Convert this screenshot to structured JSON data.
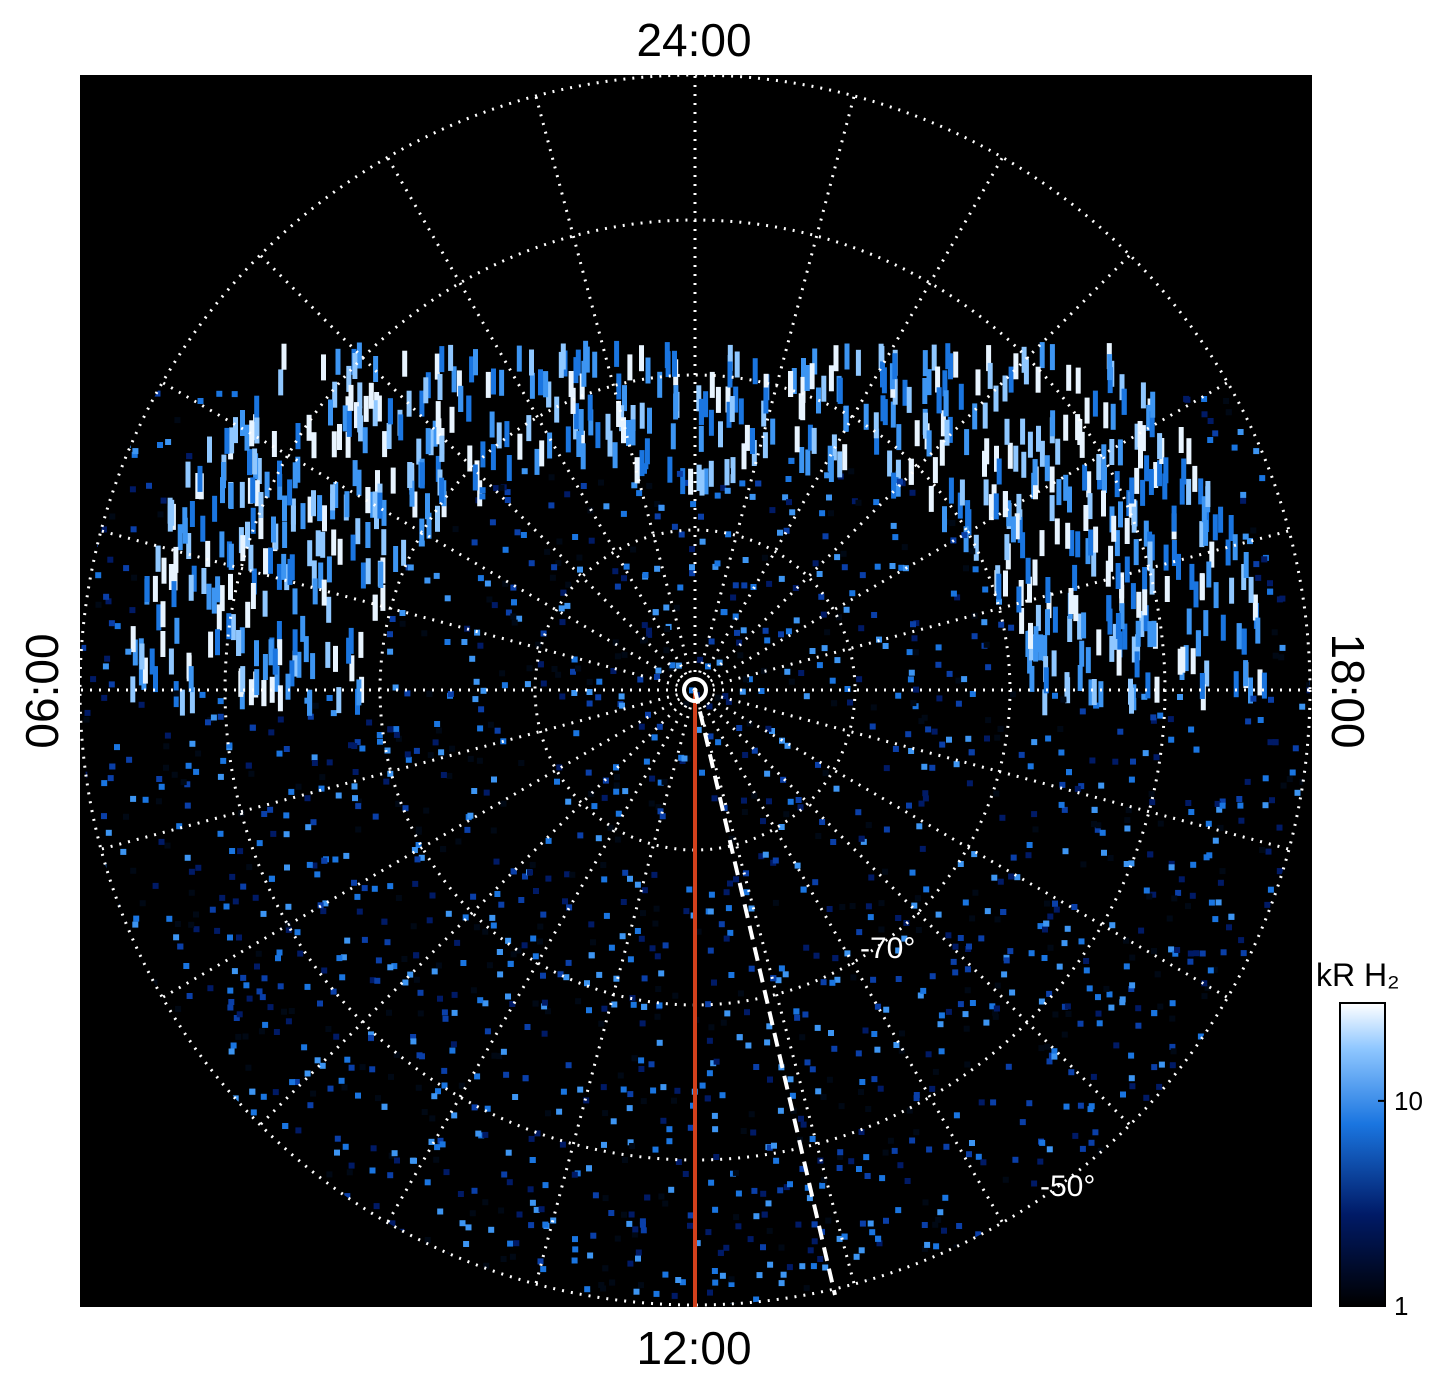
{
  "labels": {
    "top": "24:00",
    "bottom": "12:00",
    "left": "06:00",
    "right": "18:00"
  },
  "latitude_labels": [
    "-70°",
    "-50°"
  ],
  "colorbar": {
    "title": "kR H₂",
    "scale": "log",
    "lim": [
      1,
      30
    ],
    "ticks": [
      1,
      10
    ]
  }
}
